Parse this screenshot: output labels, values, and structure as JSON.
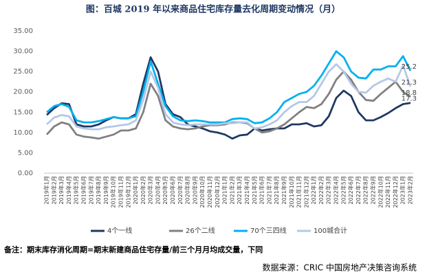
{
  "chart_data": {
    "type": "line",
    "title": "图：百城 2019 年以来商品住宅库存量去化周期变动情况（月）",
    "note": "备注：期末库存消化周期=期末新建商品住宅存量/前三个月月均成交量，下同",
    "source": "数据来源：CRIC 中国房地产决策咨询系统",
    "categories": [
      "2019年1月",
      "2019年2月",
      "2019年3月",
      "2019年4月",
      "2019年5月",
      "2019年6月",
      "2019年7月",
      "2019年8月",
      "2019年9月",
      "2019年10月",
      "2019年11月",
      "2019年12月",
      "2020年1月",
      "2020年2月",
      "2020年3月",
      "2020年4月",
      "2020年5月",
      "2020年6月",
      "2020年7月",
      "2020年8月",
      "2020年9月",
      "2020年10月",
      "2020年11月",
      "2020年12月",
      "2021年1月",
      "2021年2月",
      "2021年3月",
      "2021年4月",
      "2021年5月",
      "2021年6月",
      "2021年7月",
      "2021年8月",
      "2021年9月",
      "2021年10月",
      "2021年11月",
      "2021年12月",
      "2022年1月",
      "2022年2月",
      "2022年3月",
      "2022年4月",
      "2022年5月",
      "2022年6月",
      "2022年7月",
      "2022年8月",
      "2022年9月",
      "2022年10月",
      "2022年11月",
      "2022年12月",
      "2023年1月",
      "2023年2月"
    ],
    "series": [
      {
        "name": "4个一线",
        "color": "#1f3864",
        "values": [
          14.3,
          16,
          17.2,
          17,
          12,
          11.5,
          11.5,
          12,
          13,
          13.8,
          13.5,
          13.5,
          14.5,
          22,
          28.5,
          25,
          17,
          14.5,
          13.8,
          12,
          11.5,
          11,
          10.3,
          10,
          9.5,
          8.5,
          9.3,
          9.5,
          11,
          10.5,
          10.8,
          11,
          11,
          12,
          12,
          12.3,
          11.5,
          11.8,
          14,
          18.5,
          20.3,
          19,
          15,
          13,
          13,
          13.8,
          14.8,
          16,
          17,
          17.3
        ]
      },
      {
        "name": "26个二线",
        "color": "#808080",
        "values": [
          9.5,
          11.5,
          12.5,
          12,
          9.5,
          9,
          8.8,
          8.5,
          9,
          9.5,
          10.5,
          10.5,
          11,
          15,
          22,
          19,
          13,
          11.5,
          11,
          10.8,
          11,
          11.5,
          11.8,
          11.8,
          12,
          12.5,
          12.5,
          12.3,
          11,
          10,
          10.3,
          11,
          12,
          13.5,
          15,
          16.3,
          16,
          17,
          19.5,
          23,
          25,
          23,
          20,
          18,
          17.8,
          19.5,
          21,
          22.5,
          20,
          18.8
        ]
      },
      {
        "name": "70个三四线",
        "color": "#00b0f0",
        "values": [
          15,
          16.5,
          17,
          16.3,
          13,
          12.5,
          12.5,
          12.8,
          13.3,
          13.8,
          13.5,
          13.5,
          14,
          20,
          27.5,
          22,
          16.5,
          14,
          13,
          12.8,
          13,
          12.8,
          12.5,
          12.5,
          12.5,
          13.3,
          13.5,
          13.3,
          12.3,
          12.5,
          13.5,
          15,
          17.5,
          18.5,
          19.5,
          20,
          21.5,
          24,
          27,
          30,
          28.5,
          25,
          23.5,
          23.3,
          25.5,
          25.5,
          26.3,
          26.3,
          28.8,
          25.2
        ]
      },
      {
        "name": "100城合计",
        "color": "#b4c7e7",
        "values": [
          12,
          13.7,
          14.3,
          14,
          11.5,
          11,
          10.8,
          10.8,
          11.3,
          11.5,
          11.8,
          12,
          13,
          18,
          25,
          21,
          14.5,
          12.5,
          12,
          11.8,
          12,
          12,
          12,
          12,
          12.3,
          12.3,
          12.5,
          12.5,
          11,
          11.3,
          12,
          13,
          15,
          16.5,
          17.5,
          17.5,
          19,
          22,
          25,
          26.8,
          25,
          22,
          20,
          19.8,
          21.5,
          22.5,
          23.3,
          22.5,
          26.5,
          21.3
        ]
      }
    ],
    "ylim": [
      0,
      35
    ],
    "yticks": [
      {
        "value": 0,
        "label": "0.00"
      },
      {
        "value": 5,
        "label": "5.00"
      },
      {
        "value": 10,
        "label": "10.00"
      },
      {
        "value": 15,
        "label": "15.00"
      },
      {
        "value": 20,
        "label": "20.00"
      },
      {
        "value": 25,
        "label": "25.00"
      },
      {
        "value": 30,
        "label": "30.00"
      },
      {
        "value": 35,
        "label": "35.00"
      }
    ],
    "grid": false,
    "legend": "bottom"
  }
}
